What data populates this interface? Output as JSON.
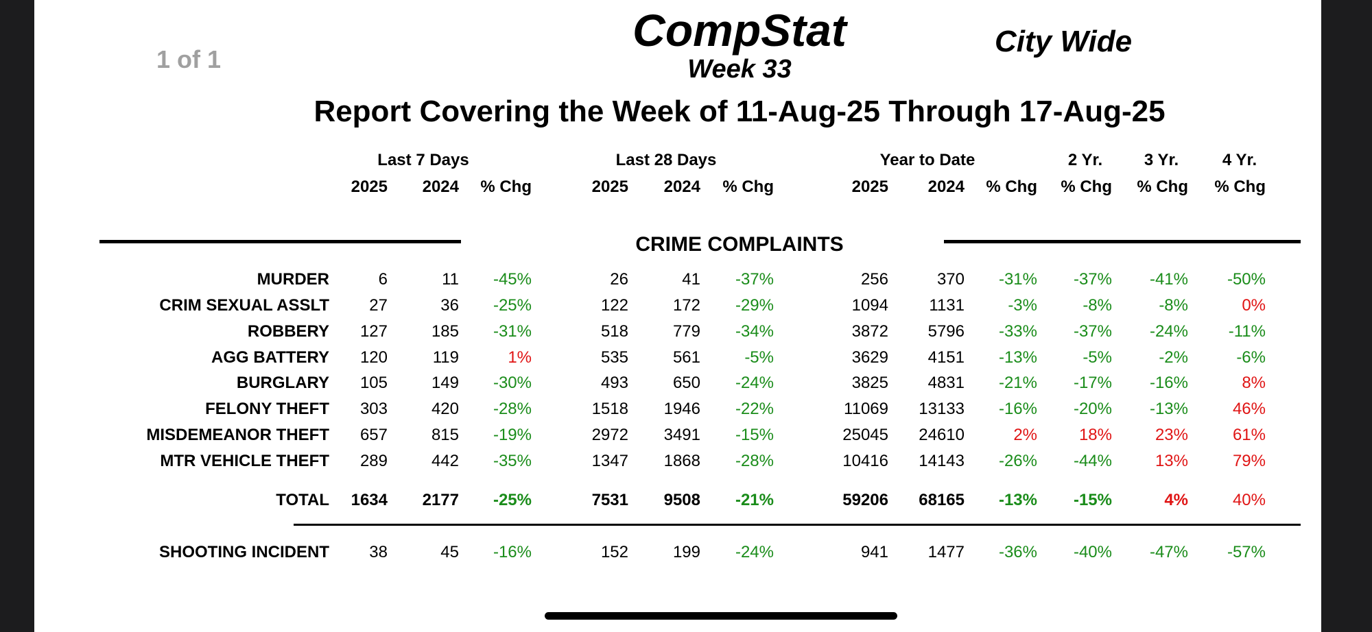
{
  "page_counter": "1 of 1",
  "title": "CompStat",
  "week": "Week 33",
  "scope": "City Wide",
  "covering": "Report Covering the Week of 11-Aug-25 Through 17-Aug-25",
  "headers": {
    "groups": [
      "Last 7 Days",
      "Last 28 Days",
      "Year to Date",
      "2 Yr.",
      "3 Yr.",
      "4 Yr."
    ],
    "columns": [
      "2025",
      "2024",
      "% Chg",
      "2025",
      "2024",
      "% Chg",
      "2025",
      "2024",
      "% Chg",
      "% Chg",
      "% Chg",
      "% Chg"
    ]
  },
  "section_title": "CRIME COMPLAINTS",
  "rows": [
    {
      "label": "MURDER",
      "values": [
        "6",
        "11",
        "-45%",
        "26",
        "41",
        "-37%",
        "256",
        "370",
        "-31%",
        "-37%",
        "-41%",
        "-50%"
      ],
      "signs": [
        "n",
        "n",
        "g",
        "n",
        "n",
        "g",
        "n",
        "n",
        "g",
        "g",
        "g",
        "g"
      ]
    },
    {
      "label": "CRIM SEXUAL ASSLT",
      "values": [
        "27",
        "36",
        "-25%",
        "122",
        "172",
        "-29%",
        "1094",
        "1131",
        "-3%",
        "-8%",
        "-8%",
        "0%"
      ],
      "signs": [
        "n",
        "n",
        "g",
        "n",
        "n",
        "g",
        "n",
        "n",
        "g",
        "g",
        "g",
        "r"
      ]
    },
    {
      "label": "ROBBERY",
      "values": [
        "127",
        "185",
        "-31%",
        "518",
        "779",
        "-34%",
        "3872",
        "5796",
        "-33%",
        "-37%",
        "-24%",
        "-11%"
      ],
      "signs": [
        "n",
        "n",
        "g",
        "n",
        "n",
        "g",
        "n",
        "n",
        "g",
        "g",
        "g",
        "g"
      ]
    },
    {
      "label": "AGG BATTERY",
      "values": [
        "120",
        "119",
        "1%",
        "535",
        "561",
        "-5%",
        "3629",
        "4151",
        "-13%",
        "-5%",
        "-2%",
        "-6%"
      ],
      "signs": [
        "n",
        "n",
        "r",
        "n",
        "n",
        "g",
        "n",
        "n",
        "g",
        "g",
        "g",
        "g"
      ]
    },
    {
      "label": "BURGLARY",
      "values": [
        "105",
        "149",
        "-30%",
        "493",
        "650",
        "-24%",
        "3825",
        "4831",
        "-21%",
        "-17%",
        "-16%",
        "8%"
      ],
      "signs": [
        "n",
        "n",
        "g",
        "n",
        "n",
        "g",
        "n",
        "n",
        "g",
        "g",
        "g",
        "r"
      ]
    },
    {
      "label": "FELONY THEFT",
      "values": [
        "303",
        "420",
        "-28%",
        "1518",
        "1946",
        "-22%",
        "11069",
        "13133",
        "-16%",
        "-20%",
        "-13%",
        "46%"
      ],
      "signs": [
        "n",
        "n",
        "g",
        "n",
        "n",
        "g",
        "n",
        "n",
        "g",
        "g",
        "g",
        "r"
      ]
    },
    {
      "label": "MISDEMEANOR THEFT",
      "values": [
        "657",
        "815",
        "-19%",
        "2972",
        "3491",
        "-15%",
        "25045",
        "24610",
        "2%",
        "18%",
        "23%",
        "61%"
      ],
      "signs": [
        "n",
        "n",
        "g",
        "n",
        "n",
        "g",
        "n",
        "n",
        "r",
        "r",
        "r",
        "r"
      ]
    },
    {
      "label": "MTR VEHICLE THEFT",
      "values": [
        "289",
        "442",
        "-35%",
        "1347",
        "1868",
        "-28%",
        "10416",
        "14143",
        "-26%",
        "-44%",
        "13%",
        "79%"
      ],
      "signs": [
        "n",
        "n",
        "g",
        "n",
        "n",
        "g",
        "n",
        "n",
        "g",
        "g",
        "r",
        "r"
      ]
    }
  ],
  "total": {
    "label": "TOTAL",
    "values": [
      "1634",
      "2177",
      "-25%",
      "7531",
      "9508",
      "-21%",
      "59206",
      "68165",
      "-13%",
      "-15%",
      "4%",
      "40%"
    ],
    "signs": [
      "n",
      "n",
      "g",
      "n",
      "n",
      "g",
      "n",
      "n",
      "g",
      "g",
      "r",
      "r"
    ],
    "bold": [
      true,
      true,
      true,
      true,
      true,
      true,
      true,
      true,
      true,
      true,
      true,
      false
    ]
  },
  "shooting": {
    "label": "SHOOTING INCIDENT",
    "values": [
      "38",
      "45",
      "-16%",
      "152",
      "199",
      "-24%",
      "941",
      "1477",
      "-36%",
      "-40%",
      "-47%",
      "-57%"
    ],
    "signs": [
      "n",
      "n",
      "g",
      "n",
      "n",
      "g",
      "n",
      "n",
      "g",
      "g",
      "g",
      "g"
    ]
  },
  "colors": {
    "decrease": "#1a8c1a",
    "increase": "#e01414"
  }
}
